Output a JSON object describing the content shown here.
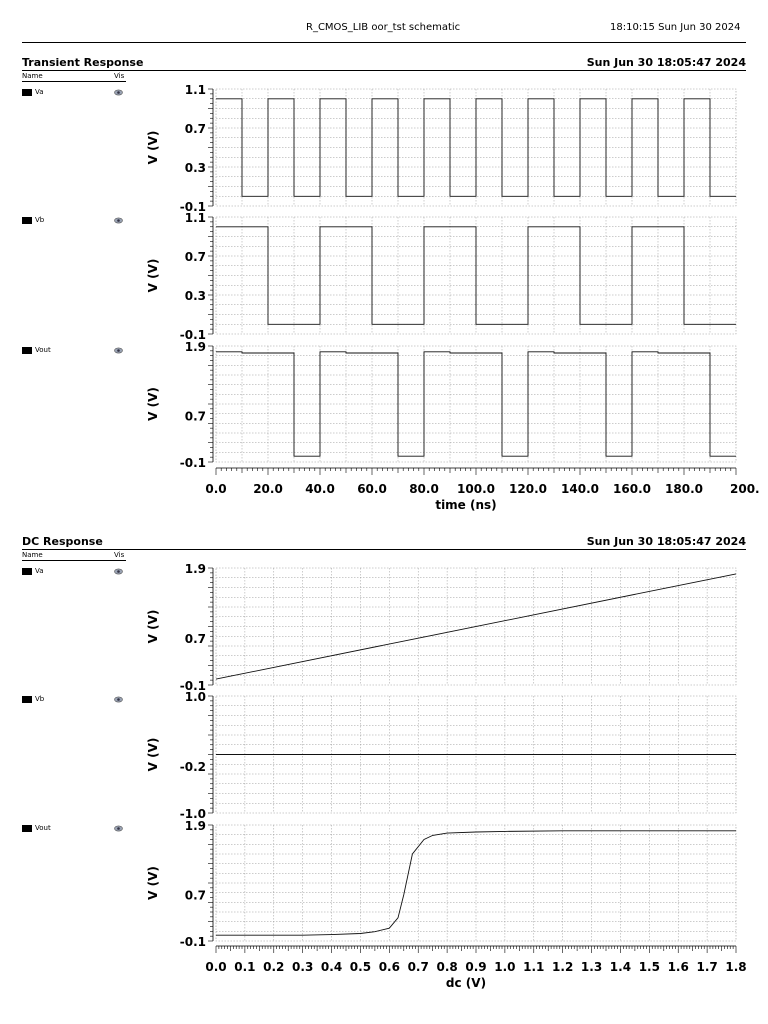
{
  "header": {
    "title": "R_CMOS_LIB oor_tst schematic",
    "timestamp": "18:10:15  Sun Jun 30 2024"
  },
  "column_headers": {
    "name": "Name",
    "vis": "Vis"
  },
  "sections": [
    {
      "title": "Transient Response",
      "date": "Sun Jun 30 18:05:47 2024",
      "signals": [
        "Va",
        "Vb",
        "Vout"
      ]
    },
    {
      "title": "DC Response",
      "date": "Sun Jun 30 18:05:47 2024",
      "signals": [
        "Va",
        "Vb",
        "Vout"
      ]
    }
  ],
  "chart_data": [
    {
      "type": "line",
      "title": "Transient Response",
      "xlabel": "time (ns)",
      "xlim": [
        0,
        200
      ],
      "xticks": [
        "0.0",
        "20.0",
        "40.0",
        "60.0",
        "80.0",
        "100.0",
        "120.0",
        "140.0",
        "160.0",
        "180.0",
        "200."
      ],
      "xtick_values": [
        0,
        20,
        40,
        60,
        80,
        100,
        120,
        140,
        160,
        180,
        200
      ],
      "grid": true,
      "panels": [
        {
          "name": "Va",
          "ylabel": "V (V)",
          "ylim": [
            -0.1,
            1.1
          ],
          "yticks": [
            "1.1",
            "0.7",
            "0.3",
            "-0.1"
          ],
          "ytick_values": [
            1.1,
            0.7,
            0.3,
            -0.1
          ],
          "x": [
            0,
            10,
            10,
            20,
            20,
            30,
            30,
            40,
            40,
            50,
            50,
            60,
            60,
            70,
            70,
            80,
            80,
            90,
            90,
            100,
            100,
            110,
            110,
            120,
            120,
            130,
            130,
            140,
            140,
            150,
            150,
            160,
            160,
            170,
            170,
            180,
            180,
            190,
            190,
            200
          ],
          "y": [
            1.0,
            1.0,
            0,
            0,
            1.0,
            1.0,
            0,
            0,
            1.0,
            1.0,
            0,
            0,
            1.0,
            1.0,
            0,
            0,
            1.0,
            1.0,
            0,
            0,
            1.0,
            1.0,
            0,
            0,
            1.0,
            1.0,
            0,
            0,
            1.0,
            1.0,
            0,
            0,
            1.0,
            1.0,
            0,
            0,
            1.0,
            1.0,
            0,
            0
          ]
        },
        {
          "name": "Vb",
          "ylabel": "V (V)",
          "ylim": [
            -0.1,
            1.1
          ],
          "yticks": [
            "1.1",
            "0.7",
            "0.3",
            "-0.1"
          ],
          "ytick_values": [
            1.1,
            0.7,
            0.3,
            -0.1
          ],
          "x": [
            0,
            20,
            20,
            40,
            40,
            60,
            60,
            80,
            80,
            100,
            100,
            120,
            120,
            140,
            140,
            160,
            160,
            180,
            180,
            200
          ],
          "y": [
            1.0,
            1.0,
            0,
            0,
            1.0,
            1.0,
            0,
            0,
            1.0,
            1.0,
            0,
            0,
            1.0,
            1.0,
            0,
            0,
            1.0,
            1.0,
            0,
            0
          ]
        },
        {
          "name": "Vout",
          "ylabel": "V (V)",
          "ylim": [
            -0.1,
            1.9
          ],
          "yticks": [
            "1.9",
            "0.7",
            "-0.1"
          ],
          "ytick_values": [
            1.9,
            0.7,
            -0.1
          ],
          "x": [
            0,
            10,
            10,
            30,
            30,
            40,
            40,
            50,
            50,
            70,
            70,
            80,
            80,
            90,
            90,
            110,
            110,
            120,
            120,
            130,
            130,
            150,
            150,
            160,
            160,
            170,
            170,
            190,
            190,
            200
          ],
          "y": [
            1.8,
            1.8,
            1.78,
            1.78,
            0,
            0,
            1.8,
            1.8,
            1.78,
            1.78,
            0,
            0,
            1.8,
            1.8,
            1.78,
            1.78,
            0,
            0,
            1.8,
            1.8,
            1.78,
            1.78,
            0,
            0,
            1.8,
            1.8,
            1.78,
            1.78,
            0,
            0
          ]
        }
      ]
    },
    {
      "type": "line",
      "title": "DC Response",
      "xlabel": "dc (V)",
      "xlim": [
        0,
        1.8
      ],
      "xticks": [
        "0.0",
        "0.1",
        "0.2",
        "0.3",
        "0.4",
        "0.5",
        "0.6",
        "0.7",
        "0.8",
        "0.9",
        "1.0",
        "1.1",
        "1.2",
        "1.3",
        "1.4",
        "1.5",
        "1.6",
        "1.7",
        "1.8"
      ],
      "xtick_values": [
        0,
        0.1,
        0.2,
        0.3,
        0.4,
        0.5,
        0.6,
        0.7,
        0.8,
        0.9,
        1.0,
        1.1,
        1.2,
        1.3,
        1.4,
        1.5,
        1.6,
        1.7,
        1.8
      ],
      "grid": true,
      "panels": [
        {
          "name": "Va",
          "ylabel": "V (V)",
          "ylim": [
            -0.1,
            1.9
          ],
          "yticks": [
            "1.9",
            "0.7",
            "-0.1"
          ],
          "ytick_values": [
            1.9,
            0.7,
            -0.1
          ],
          "x": [
            0,
            1.8
          ],
          "y": [
            0,
            1.8
          ]
        },
        {
          "name": "Vb",
          "ylabel": "V (V)",
          "ylim": [
            -1.0,
            1.0
          ],
          "yticks": [
            "1.0",
            "-0.2",
            "-1.0"
          ],
          "ytick_values": [
            1.0,
            -0.2,
            -1.0
          ],
          "x": [
            0,
            1.8
          ],
          "y": [
            0,
            0
          ]
        },
        {
          "name": "Vout",
          "ylabel": "V (V)",
          "ylim": [
            -0.1,
            1.9
          ],
          "yticks": [
            "1.9",
            "0.7",
            "-0.1"
          ],
          "ytick_values": [
            1.9,
            0.7,
            -0.1
          ],
          "x": [
            0,
            0.3,
            0.4,
            0.5,
            0.55,
            0.6,
            0.63,
            0.65,
            0.68,
            0.72,
            0.75,
            0.8,
            0.9,
            1.0,
            1.2,
            1.5,
            1.8
          ],
          "y": [
            0,
            0,
            0.01,
            0.03,
            0.06,
            0.12,
            0.3,
            0.7,
            1.4,
            1.65,
            1.72,
            1.76,
            1.78,
            1.79,
            1.8,
            1.8,
            1.8
          ]
        }
      ]
    }
  ]
}
